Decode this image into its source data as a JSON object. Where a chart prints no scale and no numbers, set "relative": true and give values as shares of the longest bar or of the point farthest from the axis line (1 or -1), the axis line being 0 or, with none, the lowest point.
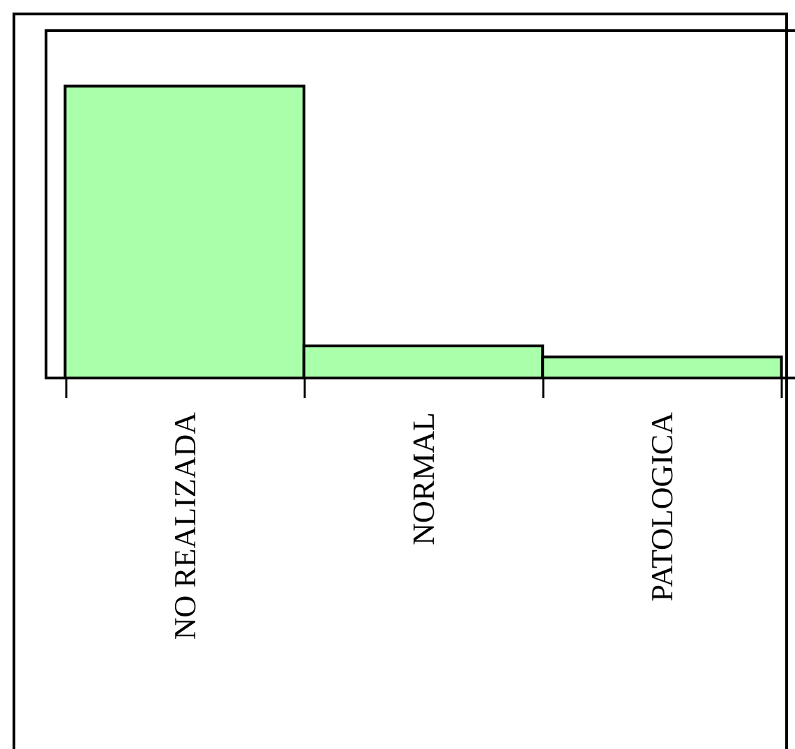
{
  "chart_data": {
    "type": "bar",
    "categories": [
      "NO REALIZADA",
      "NORMAL",
      "PATOLOGICA"
    ],
    "values": [
      1,
      0.11,
      0.072
    ],
    "color": "#aaffaa",
    "relative": true
  }
}
